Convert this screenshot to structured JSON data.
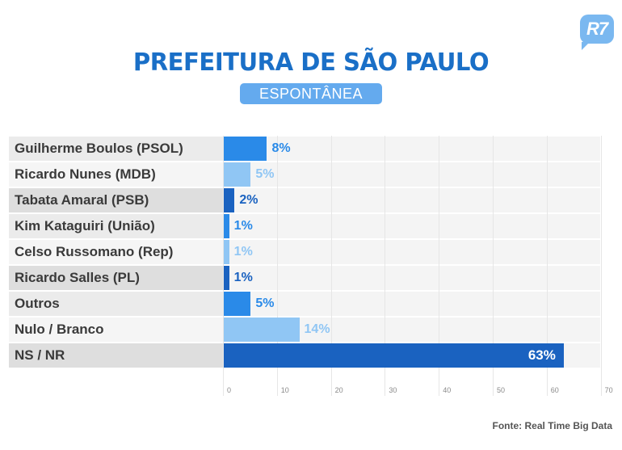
{
  "header": {
    "logo": "R7",
    "title": "PREFEITURA DE SÃO PAULO",
    "subtitle": "ESPONTÂNEA"
  },
  "footer": {
    "source": "Fonte: Real Time Big Data"
  },
  "colors": {
    "bright_blue": "#2a8ae8",
    "light_blue": "#90c6f4",
    "dark_blue": "#1a62c0",
    "title_blue": "#1a6fc7"
  },
  "chart_data": {
    "type": "bar",
    "orientation": "horizontal",
    "title": "PREFEITURA DE SÃO PAULO",
    "subtitle": "ESPONTÂNEA",
    "categories": [
      "Guilherme Boulos (PSOL)",
      "Ricardo Nunes (MDB)",
      "Tabata Amaral (PSB)",
      "Kim Kataguiri (União)",
      "Celso Russomano (Rep)",
      "Ricardo Salles (PL)",
      "Outros",
      "Nulo / Branco",
      "NS / NR"
    ],
    "values": [
      8,
      5,
      2,
      1,
      1,
      1,
      5,
      14,
      63
    ],
    "value_labels": [
      "8%",
      "5%",
      "2%",
      "1%",
      "1%",
      "1%",
      "5%",
      "14%",
      "63%"
    ],
    "bar_colors": [
      "#2a8ae8",
      "#90c6f4",
      "#1a62c0",
      "#2a8ae8",
      "#90c6f4",
      "#1a62c0",
      "#2a8ae8",
      "#90c6f4",
      "#1a62c0"
    ],
    "label_colors": [
      "#2a8ae8",
      "#90c6f4",
      "#1a62c0",
      "#2a8ae8",
      "#90c6f4",
      "#1a62c0",
      "#2a8ae8",
      "#90c6f4",
      "#ffffff"
    ],
    "row_label_bg": [
      "#ebebeb",
      "#f5f5f5",
      "#dedede",
      "#ebebeb",
      "#f5f5f5",
      "#dedede",
      "#ebebeb",
      "#f5f5f5",
      "#dedede"
    ],
    "xticks": [
      0,
      10,
      20,
      30,
      40,
      50,
      60,
      70
    ],
    "xlim": [
      0,
      70
    ],
    "xlabel": "",
    "ylabel": "",
    "grid": true,
    "source": "Fonte: Real Time Big Data"
  }
}
